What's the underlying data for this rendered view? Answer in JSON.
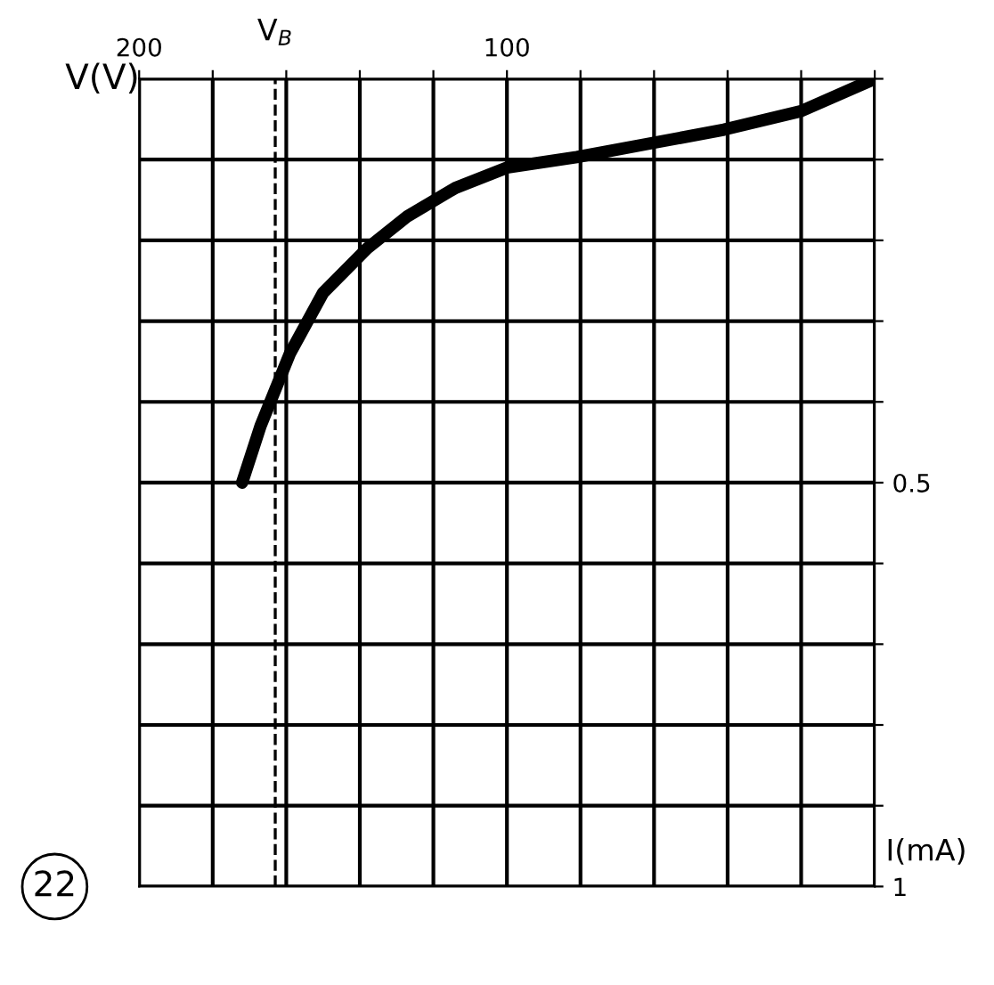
{
  "chart_data": {
    "type": "line",
    "xlabel": "V(V)",
    "ylabel": "I(mA)",
    "x": [
      0,
      20,
      41,
      61,
      81,
      100,
      114,
      127,
      138,
      150,
      159,
      167,
      172
    ],
    "series": [
      {
        "color": "#000000",
        "values": [
          0,
          0.04,
          0.063,
          0.08,
          0.097,
          0.11,
          0.135,
          0.17,
          0.21,
          0.265,
          0.34,
          0.43,
          0.5
        ]
      }
    ],
    "xlim": [
      200,
      0
    ],
    "ylim": [
      1,
      0
    ],
    "xticks": [
      200,
      {
        "value": 180,
        "label": null
      },
      {
        "value": 160,
        "label": null
      },
      {
        "value": 140,
        "label": null
      },
      {
        "value": 120,
        "label": null
      },
      100,
      {
        "value": 80,
        "label": null
      },
      {
        "value": 60,
        "label": null
      },
      {
        "value": 40,
        "label": null
      },
      {
        "value": 20,
        "label": null
      },
      {
        "value": 0,
        "label": null
      }
    ],
    "yticks": [
      {
        "value": 0,
        "label": null
      },
      {
        "value": 0.1,
        "label": null
      },
      {
        "value": 0.2,
        "label": null
      },
      {
        "value": 0.3,
        "label": null
      },
      {
        "value": 0.4,
        "label": null
      },
      0.5,
      {
        "value": 0.6,
        "label": null
      },
      {
        "value": 0.7,
        "label": null
      },
      {
        "value": 0.8,
        "label": null
      },
      {
        "value": 0.9,
        "label": null
      },
      1
    ],
    "grid": true,
    "line_style": "solid",
    "marker": "none",
    "ref_lines": [
      {
        "axis": "x",
        "value": 163,
        "label": "V$_{B}$",
        "line_style": "dashed",
        "color": "#000000"
      }
    ],
    "annotations": [
      "22"
    ]
  }
}
